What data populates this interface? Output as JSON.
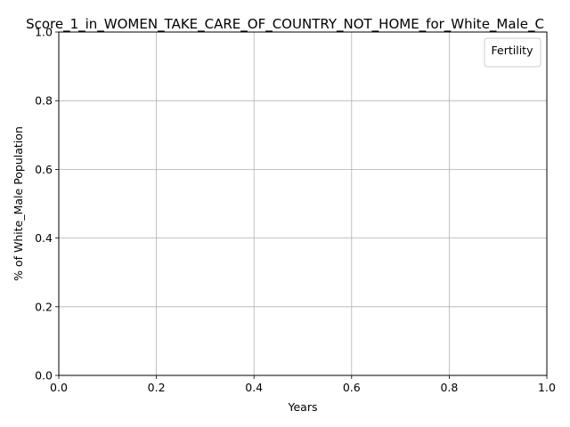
{
  "chart_data": {
    "type": "line",
    "title": "Score_1_in_WOMEN_TAKE_CARE_OF_COUNTRY_NOT_HOME_for_White_Male_C",
    "xlabel": "Years",
    "ylabel": "% of White_Male Population",
    "xlim": [
      0.0,
      1.0
    ],
    "ylim": [
      0.0,
      1.0
    ],
    "x_ticks": [
      "0.0",
      "0.2",
      "0.4",
      "0.6",
      "0.8",
      "1.0"
    ],
    "y_ticks": [
      "0.0",
      "0.2",
      "0.4",
      "0.6",
      "0.8",
      "1.0"
    ],
    "grid": true,
    "legend": {
      "title": "Fertility",
      "placement": "top-right",
      "entries": []
    },
    "series": [],
    "colors": {
      "axis": "#000000",
      "grid": "#b0b0b0",
      "background": "#ffffff",
      "legend_border": "#cccccc"
    }
  }
}
